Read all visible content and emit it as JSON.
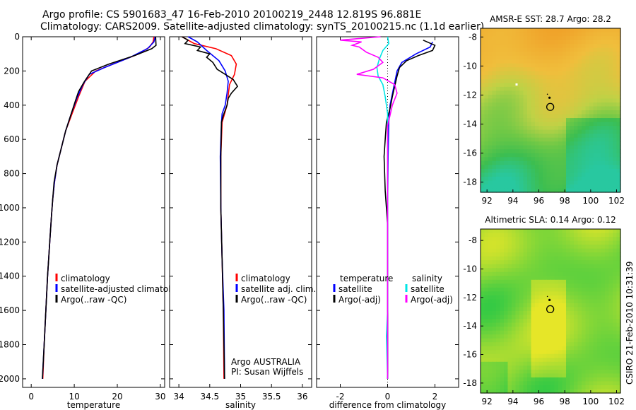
{
  "header": {
    "line1": "Argo profile: CS 5901683_47 16-Feb-2010 20100219_2448 12.819S 96.881E",
    "line2": "Climatology: CARS2009. Satellite-adjusted climatology: synTS_20100215.nc (1.1d earlier)"
  },
  "colors": {
    "red": "#ff0000",
    "blue": "#0000ff",
    "black": "#000000",
    "cyan": "#00e5e5",
    "magenta": "#ff00ff"
  },
  "chart_data": [
    {
      "type": "line",
      "xlabel": "temperature",
      "ylabel": "",
      "xlim": [
        -2,
        31
      ],
      "ylim": [
        2050,
        0
      ],
      "y_inverted": true,
      "xticks": [
        0,
        10,
        20,
        30
      ],
      "yticks": [
        0,
        200,
        400,
        600,
        800,
        1000,
        1200,
        1400,
        1600,
        1800,
        2000
      ],
      "legend": [
        "climatology",
        "satellite-adjusted climatology",
        "Argo(..raw -QC)"
      ],
      "series": [
        {
          "name": "climatology",
          "color": "red",
          "points": [
            [
              28.5,
              0
            ],
            [
              28.3,
              30
            ],
            [
              27.5,
              60
            ],
            [
              25,
              100
            ],
            [
              20,
              150
            ],
            [
              15,
              200
            ],
            [
              12.5,
              260
            ],
            [
              11,
              350
            ],
            [
              9.5,
              450
            ],
            [
              8,
              550
            ],
            [
              7,
              650
            ],
            [
              6,
              750
            ],
            [
              5.4,
              850
            ],
            [
              5,
              950
            ],
            [
              4.7,
              1050
            ],
            [
              4.3,
              1200
            ],
            [
              3.8,
              1400
            ],
            [
              3.4,
              1600
            ],
            [
              3,
              1800
            ],
            [
              2.7,
              2000
            ]
          ]
        },
        {
          "name": "satellite-adjusted climatology",
          "color": "blue",
          "points": [
            [
              28.8,
              0
            ],
            [
              28.5,
              30
            ],
            [
              27,
              70
            ],
            [
              23,
              120
            ],
            [
              17,
              180
            ],
            [
              13.5,
              220
            ],
            [
              12,
              280
            ],
            [
              10.6,
              360
            ],
            [
              9.3,
              450
            ],
            [
              8,
              550
            ],
            [
              7,
              650
            ],
            [
              6,
              750
            ],
            [
              5.4,
              850
            ],
            [
              5,
              950
            ],
            [
              4.7,
              1050
            ],
            [
              4.3,
              1200
            ],
            [
              3.8,
              1400
            ],
            [
              3.4,
              1600
            ],
            [
              3,
              1800
            ],
            [
              2.6,
              2000
            ]
          ]
        },
        {
          "name": "Argo(..raw -QC)",
          "color": "black",
          "points": [
            [
              28.9,
              0
            ],
            [
              29,
              50
            ],
            [
              28,
              70
            ],
            [
              24,
              110
            ],
            [
              18,
              160
            ],
            [
              14,
              200
            ],
            [
              12.4,
              260
            ],
            [
              11,
              320
            ],
            [
              10.2,
              380
            ],
            [
              9.3,
              450
            ],
            [
              8,
              550
            ],
            [
              7,
              650
            ],
            [
              6,
              750
            ],
            [
              5.3,
              850
            ],
            [
              5,
              950
            ],
            [
              4.7,
              1050
            ],
            [
              4.3,
              1200
            ],
            [
              3.8,
              1400
            ],
            [
              3.4,
              1600
            ],
            [
              3,
              1800
            ],
            [
              2.6,
              2000
            ]
          ]
        }
      ]
    },
    {
      "type": "line",
      "xlabel": "salinity",
      "ylabel": "",
      "xlim": [
        33.85,
        36.15
      ],
      "ylim": [
        2050,
        0
      ],
      "y_inverted": true,
      "xticks": [
        34,
        34.5,
        35,
        35.5,
        36
      ],
      "legend": [
        "climatology",
        "satellite adj. clim.",
        "Argo(..raw -QC)"
      ],
      "annotation": [
        "Argo AUSTRALIA",
        "PI: Susan Wijffels"
      ],
      "series": [
        {
          "name": "climatology",
          "color": "red",
          "points": [
            [
              34.05,
              0
            ],
            [
              34.25,
              40
            ],
            [
              34.6,
              70
            ],
            [
              34.85,
              110
            ],
            [
              34.93,
              160
            ],
            [
              34.9,
              220
            ],
            [
              34.82,
              280
            ],
            [
              34.8,
              340
            ],
            [
              34.78,
              400
            ],
            [
              34.74,
              450
            ],
            [
              34.7,
              500
            ],
            [
              34.68,
              700
            ],
            [
              34.68,
              1000
            ],
            [
              34.7,
              1300
            ],
            [
              34.72,
              1600
            ],
            [
              34.73,
              2000
            ]
          ]
        },
        {
          "name": "satellite adj. clim.",
          "color": "blue",
          "points": [
            [
              34.15,
              0
            ],
            [
              34.3,
              30
            ],
            [
              34.45,
              80
            ],
            [
              34.65,
              140
            ],
            [
              34.75,
              200
            ],
            [
              34.8,
              260
            ],
            [
              34.78,
              330
            ],
            [
              34.75,
              400
            ],
            [
              34.7,
              450
            ],
            [
              34.69,
              500
            ],
            [
              34.67,
              700
            ],
            [
              34.68,
              1000
            ],
            [
              34.7,
              1300
            ],
            [
              34.73,
              1600
            ],
            [
              34.74,
              2000
            ]
          ]
        },
        {
          "name": "Argo(..raw -QC)",
          "color": "black",
          "points": [
            [
              34.05,
              0
            ],
            [
              34.15,
              20
            ],
            [
              34.1,
              40
            ],
            [
              34.35,
              60
            ],
            [
              34.3,
              80
            ],
            [
              34.5,
              100
            ],
            [
              34.45,
              120
            ],
            [
              34.55,
              150
            ],
            [
              34.62,
              190
            ],
            [
              34.75,
              220
            ],
            [
              34.88,
              250
            ],
            [
              34.95,
              290
            ],
            [
              34.85,
              330
            ],
            [
              34.8,
              360
            ],
            [
              34.78,
              400
            ],
            [
              34.72,
              460
            ],
            [
              34.69,
              500
            ],
            [
              34.68,
              700
            ],
            [
              34.68,
              1000
            ],
            [
              34.7,
              1300
            ],
            [
              34.72,
              1600
            ],
            [
              34.74,
              2000
            ]
          ]
        }
      ]
    },
    {
      "type": "line",
      "xlabel": "difference from climatology",
      "ylabel": "",
      "xlim": [
        -3,
        3
      ],
      "ylim": [
        2050,
        0
      ],
      "y_inverted": true,
      "xticks": [
        -2,
        0,
        2
      ],
      "legend": [
        {
          "header": "temperature",
          "items": [
            "satellite",
            "Argo(-adj)"
          ]
        },
        {
          "header": "salinity",
          "items": [
            "satellite",
            "Argo(-adj)"
          ]
        }
      ],
      "series": [
        {
          "name": "satellite",
          "quantity": "temperature",
          "color": "blue",
          "points": [
            [
              1.9,
              30
            ],
            [
              1.8,
              60
            ],
            [
              1.2,
              100
            ],
            [
              0.6,
              150
            ],
            [
              0.4,
              200
            ],
            [
              0.25,
              300
            ],
            [
              0.1,
              400
            ],
            [
              0.05,
              500
            ],
            [
              0.02,
              700
            ],
            [
              0,
              1000
            ],
            [
              0,
              2000
            ]
          ]
        },
        {
          "name": "Argo(-adj)",
          "quantity": "temperature",
          "color": "black",
          "points": [
            [
              1.5,
              20
            ],
            [
              2.0,
              50
            ],
            [
              1.9,
              80
            ],
            [
              1.3,
              110
            ],
            [
              0.8,
              140
            ],
            [
              0.5,
              180
            ],
            [
              0.4,
              230
            ],
            [
              0.3,
              290
            ],
            [
              0.2,
              350
            ],
            [
              0.1,
              420
            ],
            [
              -0.05,
              500
            ],
            [
              -0.1,
              600
            ],
            [
              -0.15,
              700
            ],
            [
              -0.1,
              900
            ],
            [
              0,
              1100
            ],
            [
              0,
              2000
            ]
          ]
        },
        {
          "name": "satellite",
          "quantity": "salinity",
          "color": "cyan",
          "points": [
            [
              0,
              0
            ],
            [
              0.05,
              40
            ],
            [
              -0.2,
              80
            ],
            [
              -0.35,
              130
            ],
            [
              -0.45,
              180
            ],
            [
              -0.4,
              230
            ],
            [
              -0.2,
              280
            ],
            [
              -0.1,
              350
            ],
            [
              0,
              450
            ],
            [
              0,
              700
            ],
            [
              0,
              1000
            ],
            [
              0,
              1600
            ],
            [
              -0.05,
              1750
            ],
            [
              0,
              2000
            ]
          ]
        },
        {
          "name": "Argo(-adj)",
          "quantity": "salinity",
          "color": "magenta",
          "points": [
            [
              -0.3,
              0
            ],
            [
              -2.0,
              20
            ],
            [
              -1.1,
              30
            ],
            [
              -1.5,
              50
            ],
            [
              -1.2,
              60
            ],
            [
              -0.9,
              90
            ],
            [
              -0.4,
              120
            ],
            [
              -0.2,
              150
            ],
            [
              -0.6,
              190
            ],
            [
              -1.3,
              220
            ],
            [
              -0.2,
              240
            ],
            [
              0.3,
              280
            ],
            [
              0.4,
              330
            ],
            [
              0.2,
              400
            ],
            [
              0.1,
              460
            ],
            [
              0,
              520
            ],
            [
              0,
              1000
            ],
            [
              0,
              2000
            ]
          ]
        }
      ]
    },
    {
      "type": "heatmap",
      "title": "AMSR-E SST: 28.7  Argo: 28.2",
      "xlim": [
        91.5,
        102.3
      ],
      "ylim": [
        -18.7,
        -7.4
      ],
      "xticks": [
        92,
        94,
        96,
        98,
        100,
        102
      ],
      "yticks": [
        -8,
        -10,
        -12,
        -14,
        -16,
        -18
      ],
      "argo_position": [
        96.88,
        -12.82
      ]
    },
    {
      "type": "heatmap",
      "title": "Altimetric SLA: 0.14  Argo: 0.12",
      "xlim": [
        91.5,
        102.3
      ],
      "ylim": [
        -18.7,
        -7.2
      ],
      "xticks": [
        92,
        94,
        96,
        98,
        100,
        102
      ],
      "yticks": [
        -8,
        -10,
        -12,
        -14,
        -16,
        -18
      ],
      "argo_position": [
        96.88,
        -12.82
      ]
    }
  ],
  "footer": {
    "credit": "CSIRO 21-Feb-2010 10:31:39"
  }
}
